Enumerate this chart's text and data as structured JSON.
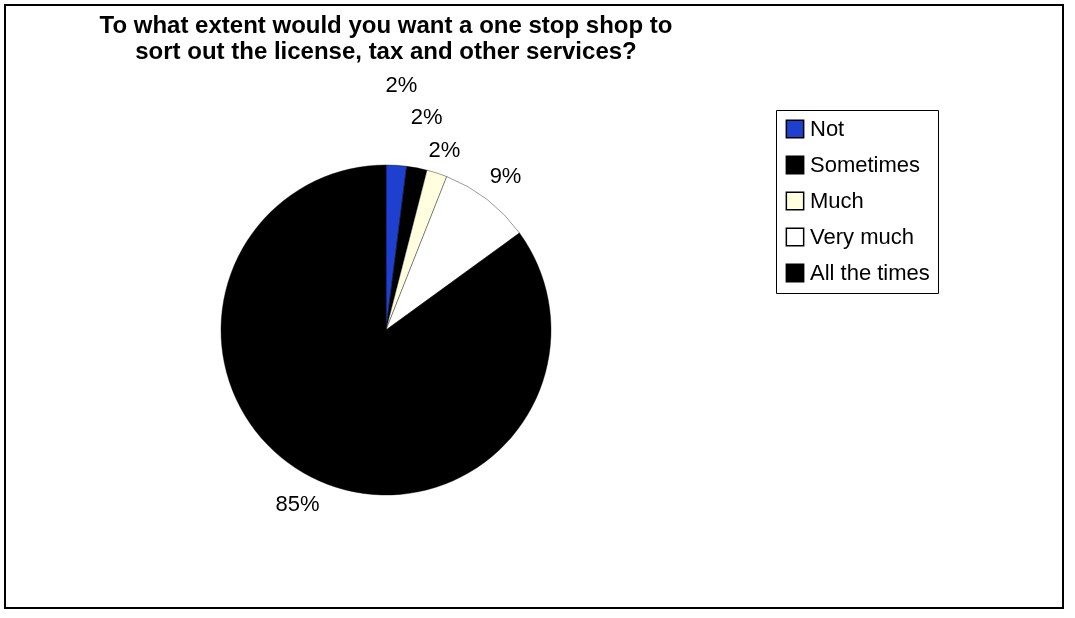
{
  "chart_data": {
    "type": "pie",
    "title": "To what extent would you want a one stop shop to sort out the license, tax and other services?",
    "categories": [
      "Not",
      "Sometimes",
      "Much",
      "Very much",
      "All the times"
    ],
    "values": [
      2,
      2,
      2,
      9,
      85
    ],
    "colors": [
      "#1f3fd0",
      "#000000",
      "#ffffe0",
      "#ffffff",
      "#000000"
    ],
    "value_labels": [
      "2%",
      "2%",
      "2%",
      "9%",
      "85%"
    ],
    "legend": "right"
  }
}
